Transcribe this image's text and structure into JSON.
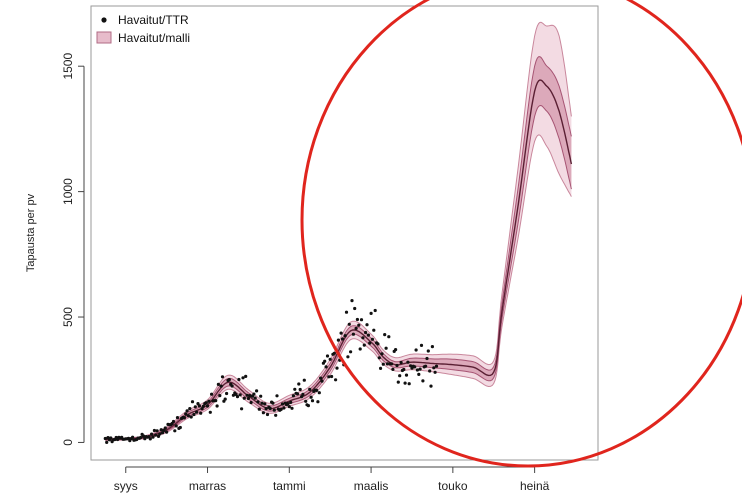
{
  "chart_data": {
    "type": "line",
    "xlabel": "",
    "ylabel": "Tapausta per pv",
    "x_tick_labels": [
      "syys",
      "marras",
      "tammi",
      "maalis",
      "touko",
      "heinä"
    ],
    "x_tick_months": [
      9,
      11,
      13,
      15,
      17,
      19
    ],
    "y_ticks": [
      0,
      500,
      1000,
      1500
    ],
    "ylim": [
      -70,
      1740
    ],
    "xlim": [
      8.15,
      20.55
    ],
    "legend": {
      "position": "top-left",
      "entries": [
        "Havaitut/TTR",
        "Havaitut/malli"
      ]
    },
    "colors": {
      "points": "#111111",
      "band_outer": "#f3dbe3",
      "band_outer_edge": "#c9879c",
      "band_inner": "#dca9ba",
      "band_inner_edge": "#a65473",
      "median": "#5a1f33",
      "annotation_circle": "#e0251d"
    },
    "series": [
      {
        "name": "Havaitut/malli",
        "kind": "model-band",
        "x": [
          8.5,
          9.0,
          9.5,
          10.0,
          10.5,
          11.0,
          11.5,
          12.0,
          12.5,
          13.0,
          13.5,
          14.0,
          14.5,
          15.0,
          15.3,
          15.6,
          16.0,
          16.5,
          17.0,
          17.5,
          18.0,
          18.2,
          18.6,
          19.0,
          19.3,
          19.6,
          19.9
        ],
        "median": [
          12,
          14,
          22,
          50,
          110,
          150,
          240,
          185,
          135,
          165,
          200,
          300,
          445,
          400,
          340,
          310,
          320,
          315,
          310,
          300,
          280,
          520,
          950,
          1400,
          1420,
          1320,
          1110
        ],
        "inner_lower": [
          10,
          12,
          19,
          45,
          102,
          140,
          225,
          172,
          125,
          154,
          188,
          285,
          428,
          384,
          326,
          298,
          305,
          298,
          290,
          278,
          258,
          490,
          880,
          1300,
          1320,
          1210,
          1010
        ],
        "inner_upper": [
          14,
          16,
          25,
          56,
          118,
          160,
          255,
          198,
          146,
          176,
          212,
          315,
          462,
          416,
          354,
          322,
          336,
          333,
          332,
          322,
          302,
          552,
          1020,
          1500,
          1500,
          1420,
          1220
        ],
        "outer_lower": [
          8,
          10,
          16,
          40,
          95,
          132,
          212,
          160,
          116,
          144,
          177,
          270,
          410,
          368,
          312,
          285,
          290,
          282,
          270,
          255,
          235,
          460,
          820,
          1200,
          1180,
          1070,
          980
        ],
        "outer_upper": [
          16,
          18,
          28,
          62,
          126,
          170,
          268,
          210,
          156,
          188,
          224,
          330,
          480,
          432,
          368,
          338,
          352,
          350,
          352,
          345,
          325,
          590,
          1100,
          1620,
          1660,
          1620,
          1300
        ]
      },
      {
        "name": "Havaitut/TTR",
        "kind": "scatter",
        "x_range": [
          8.5,
          16.6
        ],
        "points_per_day": 1
      }
    ]
  }
}
